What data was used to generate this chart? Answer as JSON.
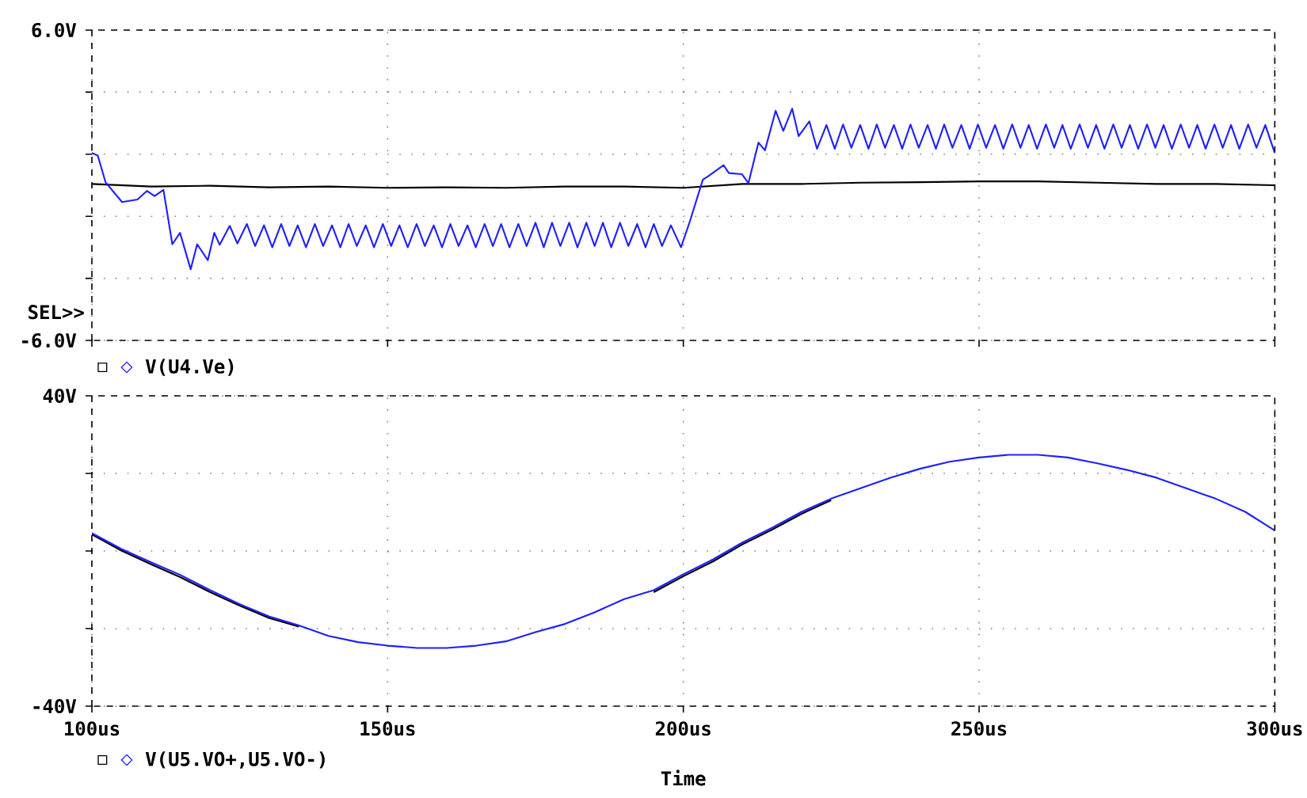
{
  "chart_data": [
    {
      "type": "line",
      "xlim": [
        100,
        300
      ],
      "xticks": [
        {
          "value": 100,
          "label": null
        },
        {
          "value": 150,
          "label": null
        },
        {
          "value": 200,
          "label": null
        },
        {
          "value": 250,
          "label": null
        },
        {
          "value": 300,
          "label": null
        }
      ],
      "ylim": [
        -6,
        6
      ],
      "yticks": [
        {
          "value": -6,
          "label": "-6.0V"
        },
        {
          "value": -3.6,
          "label": null
        },
        {
          "value": -1.2,
          "label": null
        },
        {
          "value": 1.2,
          "label": null
        },
        {
          "value": 3.6,
          "label": null
        },
        {
          "value": 6,
          "label": "6.0V"
        }
      ],
      "tick_labels": "y",
      "grid": true,
      "legend": "bottom",
      "annotations": [
        "SEL>>"
      ],
      "series": [
        {
          "color": "#000000",
          "x": [
            100,
            110,
            120,
            130,
            140,
            150,
            160,
            170,
            180,
            190,
            200,
            210,
            220,
            230,
            240,
            250,
            260,
            270,
            280,
            290,
            300
          ],
          "values": [
            0.05,
            -0.05,
            -0.02,
            -0.08,
            -0.05,
            -0.1,
            -0.08,
            -0.1,
            -0.05,
            -0.05,
            -0.1,
            0.05,
            0.05,
            0.1,
            0.12,
            0.15,
            0.15,
            0.1,
            0.05,
            0.05,
            0.0
          ]
        },
        {
          "name": "V(U4.Ve)",
          "color": "#2020ff",
          "x": [
            100,
            101,
            102.3,
            105.1,
            107.7,
            109.3,
            110.6,
            112.1,
            113.6,
            114.9,
            116.7,
            117.8,
            119.6,
            120.7,
            121.6,
            123.3,
            124.6,
            126.2,
            127.6,
            129.1,
            130.5,
            132.0,
            133.4,
            134.8,
            136.2,
            137.7,
            139.1,
            140.6,
            142.0,
            143.4,
            144.8,
            146.3,
            147.7,
            149.2,
            150.6,
            152.0,
            153.4,
            154.9,
            156.3,
            157.8,
            159.2,
            160.6,
            162.0,
            163.5,
            164.9,
            166.4,
            167.8,
            169.2,
            170.6,
            172.1,
            173.5,
            175.0,
            176.4,
            177.8,
            179.2,
            180.7,
            182.1,
            183.6,
            185.0,
            186.4,
            187.8,
            189.3,
            190.7,
            192.2,
            193.6,
            195.0,
            196.4,
            197.9,
            199.6,
            201.1,
            203.3,
            204.2,
            206.8,
            207.7,
            209.9,
            211.0,
            212.7,
            213.8,
            215.6,
            216.9,
            218.4,
            219.5,
            221.3,
            222.6,
            224.2,
            225.6,
            227.0,
            228.4,
            229.9,
            231.3,
            232.7,
            234.1,
            235.6,
            237.0,
            238.4,
            239.8,
            241.3,
            242.7,
            244.1,
            245.5,
            247.0,
            248.4,
            249.8,
            251.2,
            252.7,
            254.1,
            255.6,
            257.0,
            258.4,
            259.8,
            261.3,
            262.7,
            264.1,
            265.5,
            267.0,
            268.4,
            269.8,
            271.2,
            272.7,
            274.1,
            275.5,
            276.9,
            278.4,
            279.8,
            281.2,
            282.6,
            284.1,
            285.5,
            286.9,
            288.3,
            289.8,
            291.2,
            292.6,
            294.0,
            295.5,
            296.9,
            298.4,
            300
          ],
          "values": [
            1.25,
            1.15,
            0.12,
            -0.65,
            -0.55,
            -0.22,
            -0.42,
            -0.18,
            -2.28,
            -1.84,
            -3.25,
            -2.28,
            -2.9,
            -1.84,
            -2.3,
            -1.57,
            -2.25,
            -1.5,
            -2.35,
            -1.55,
            -2.4,
            -1.5,
            -2.35,
            -1.55,
            -2.4,
            -1.5,
            -2.35,
            -1.55,
            -2.4,
            -1.5,
            -2.35,
            -1.55,
            -2.4,
            -1.5,
            -2.35,
            -1.55,
            -2.4,
            -1.5,
            -2.35,
            -1.55,
            -2.4,
            -1.5,
            -2.35,
            -1.55,
            -2.4,
            -1.5,
            -2.35,
            -1.5,
            -2.4,
            -1.5,
            -2.35,
            -1.45,
            -2.4,
            -1.45,
            -2.35,
            -1.45,
            -2.4,
            -1.45,
            -2.35,
            -1.45,
            -2.4,
            -1.45,
            -2.35,
            -1.5,
            -2.4,
            -1.5,
            -2.35,
            -1.55,
            -2.4,
            -1.4,
            0.22,
            0.35,
            0.78,
            0.47,
            0.43,
            0.08,
            1.65,
            1.35,
            2.88,
            2.1,
            2.96,
            1.9,
            2.47,
            1.41,
            2.33,
            1.41,
            2.35,
            1.45,
            2.33,
            1.41,
            2.35,
            1.45,
            2.33,
            1.41,
            2.35,
            1.45,
            2.33,
            1.41,
            2.35,
            1.45,
            2.33,
            1.41,
            2.35,
            1.45,
            2.33,
            1.41,
            2.35,
            1.45,
            2.33,
            1.41,
            2.35,
            1.45,
            2.33,
            1.41,
            2.35,
            1.45,
            2.33,
            1.41,
            2.35,
            1.45,
            2.33,
            1.41,
            2.35,
            1.45,
            2.33,
            1.41,
            2.35,
            1.45,
            2.33,
            1.41,
            2.35,
            1.45,
            2.33,
            1.41,
            2.35,
            1.45,
            2.33,
            1.24
          ]
        }
      ]
    },
    {
      "type": "line",
      "xlim": [
        100,
        300
      ],
      "xlabel": "Time",
      "xticks": [
        {
          "value": 100,
          "label": "100us"
        },
        {
          "value": 150,
          "label": "150us"
        },
        {
          "value": 200,
          "label": "200us"
        },
        {
          "value": 250,
          "label": "250us"
        },
        {
          "value": 300,
          "label": "300us"
        }
      ],
      "ylim": [
        -40,
        40
      ],
      "yticks": [
        {
          "value": -40,
          "label": "-40V"
        },
        {
          "value": -20,
          "label": null
        },
        {
          "value": 0,
          "label": null
        },
        {
          "value": 20,
          "label": null
        },
        {
          "value": 40,
          "label": "40V"
        }
      ],
      "grid": true,
      "legend": "bottom",
      "series": [
        {
          "color": "#000000",
          "x": [
            100,
            105,
            110,
            115,
            120,
            125,
            130,
            135,
            null,
            195,
            200,
            205,
            210,
            215,
            220,
            225
          ],
          "values": [
            4.3,
            0.1,
            -3.4,
            -6.8,
            -10.6,
            -14.1,
            -17.3,
            -19.5,
            null,
            -10.6,
            -6.5,
            -2.7,
            1.7,
            5.5,
            9.6,
            13.1
          ]
        },
        {
          "name": "V(U5.VO+,U5.VO-)",
          "color": "#2020ff",
          "x": [
            100,
            105,
            110,
            115,
            120,
            125,
            130,
            135,
            140,
            145,
            150,
            155,
            160,
            165,
            170,
            175,
            180,
            185,
            190,
            195,
            200,
            205,
            210,
            215,
            220,
            225,
            230,
            235,
            240,
            245,
            250,
            255,
            260,
            265,
            270,
            275,
            280,
            285,
            290,
            295,
            300
          ],
          "values": [
            4.6,
            0.5,
            -2.9,
            -6.2,
            -10.1,
            -13.7,
            -16.9,
            -19.2,
            -21.9,
            -23.5,
            -24.4,
            -25.0,
            -25.0,
            -24.4,
            -23.3,
            -20.9,
            -18.8,
            -15.8,
            -12.4,
            -10.1,
            -6.0,
            -2.2,
            2.2,
            6.0,
            10.1,
            13.5,
            16.2,
            18.9,
            21.2,
            23.0,
            24.1,
            24.8,
            24.8,
            24.1,
            22.6,
            20.9,
            18.9,
            16.2,
            13.5,
            10.1,
            5.3
          ]
        }
      ]
    }
  ]
}
